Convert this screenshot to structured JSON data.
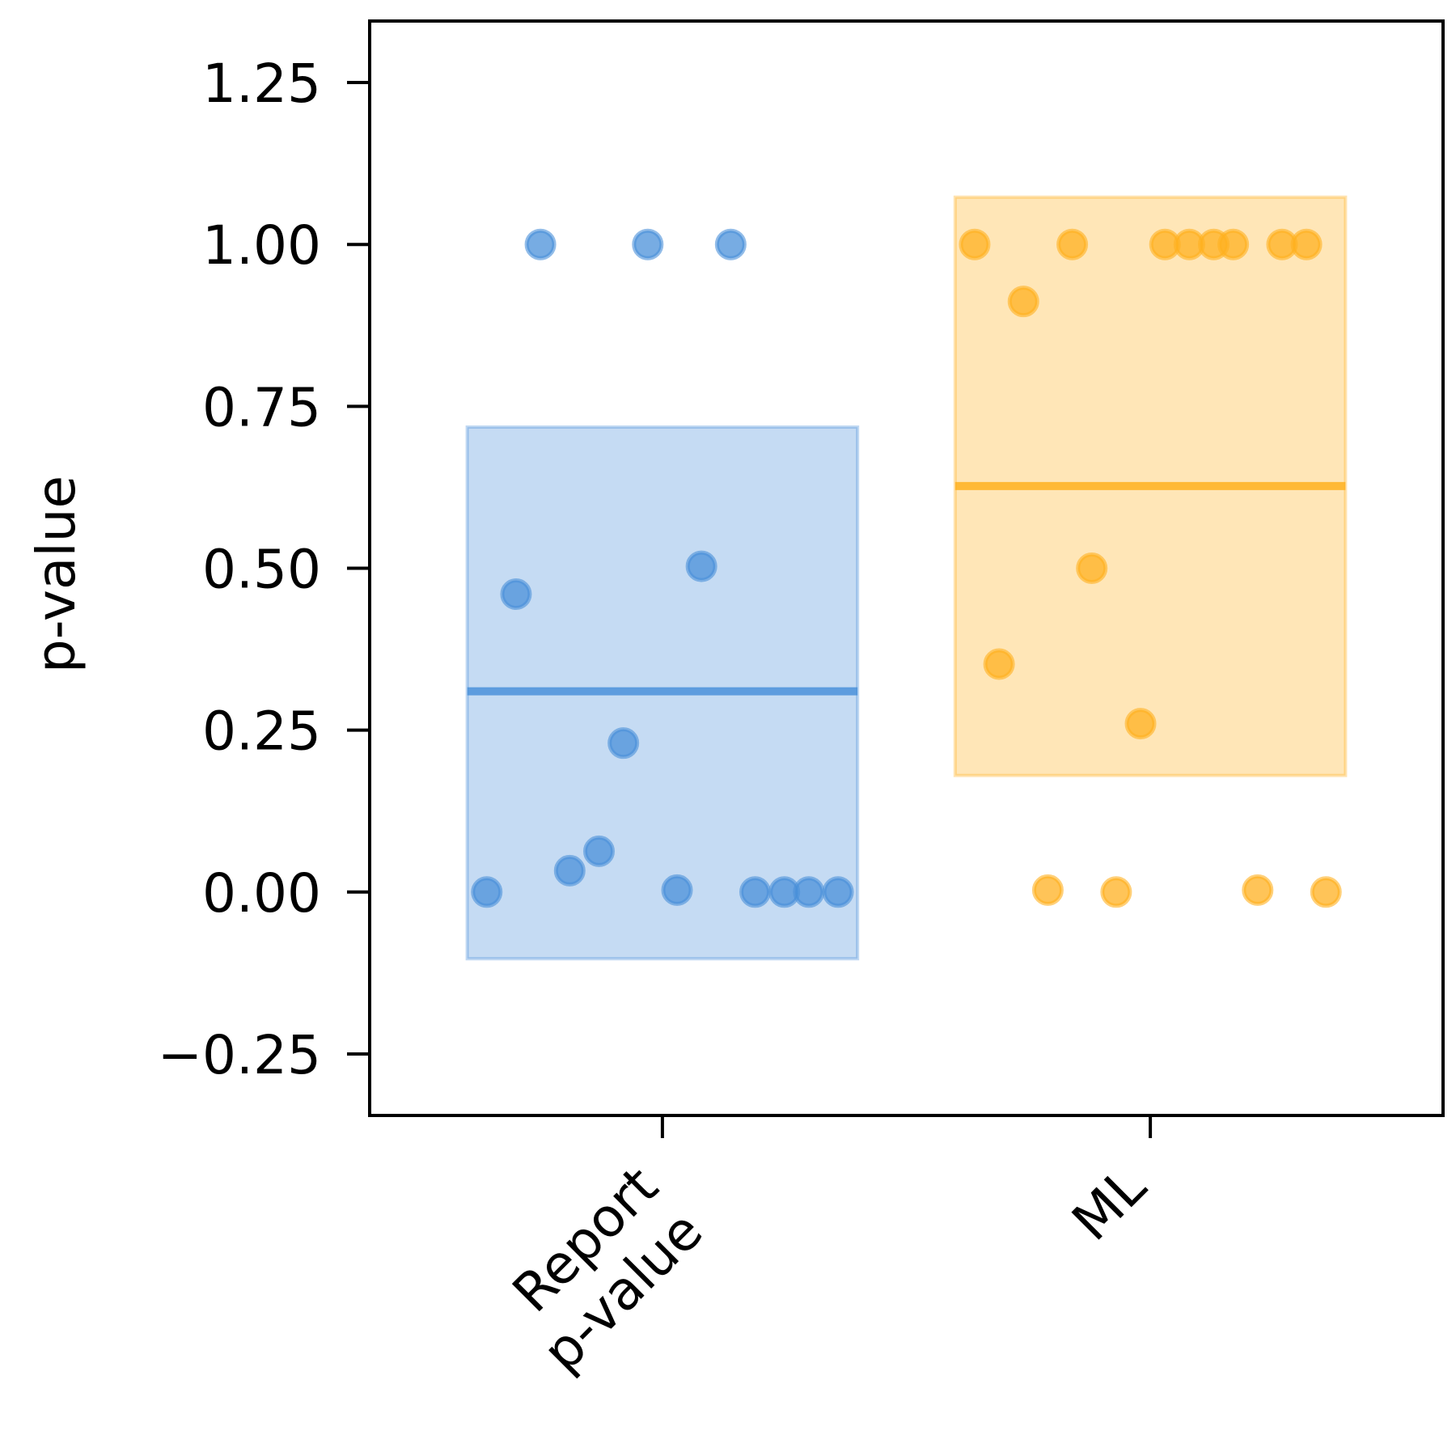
{
  "chart_data": {
    "type": "scatter",
    "ylabel": "p-value",
    "ylim": [
      -0.345,
      1.345
    ],
    "yticks": [
      -0.25,
      0.0,
      0.25,
      0.5,
      0.75,
      1.0,
      1.25
    ],
    "ytick_labels": [
      "−0.25",
      "0.00",
      "0.25",
      "0.50",
      "0.75",
      "1.00",
      "1.25"
    ],
    "grid": false,
    "legend": "none",
    "categories": [
      {
        "label_lines": [
          "Report",
          "p-value"
        ]
      },
      {
        "label_lines": [
          "ML"
        ]
      }
    ],
    "series": [
      {
        "category": 0,
        "color": "#4A90D9",
        "mean": 0.31,
        "band": [
          -0.103,
          0.718
        ],
        "points": [
          {
            "x": -0.36,
            "y": 0.0
          },
          {
            "x": -0.3,
            "y": 0.46
          },
          {
            "x": -0.25,
            "y": 1.0
          },
          {
            "x": -0.19,
            "y": 0.033
          },
          {
            "x": -0.13,
            "y": 0.063
          },
          {
            "x": -0.08,
            "y": 0.23
          },
          {
            "x": -0.03,
            "y": 1.0
          },
          {
            "x": 0.03,
            "y": 0.003
          },
          {
            "x": 0.08,
            "y": 0.503
          },
          {
            "x": 0.14,
            "y": 1.0
          },
          {
            "x": 0.19,
            "y": 0.0
          },
          {
            "x": 0.25,
            "y": 0.0
          },
          {
            "x": 0.3,
            "y": 0.0
          },
          {
            "x": 0.36,
            "y": 0.0
          }
        ]
      },
      {
        "category": 1,
        "color": "#FFB020",
        "mean": 0.627,
        "band": [
          0.18,
          1.073
        ],
        "points": [
          {
            "x": -0.36,
            "y": 1.0
          },
          {
            "x": -0.31,
            "y": 0.352
          },
          {
            "x": -0.26,
            "y": 0.912
          },
          {
            "x": -0.21,
            "y": 0.003
          },
          {
            "x": -0.16,
            "y": 1.0
          },
          {
            "x": -0.12,
            "y": 0.5
          },
          {
            "x": -0.07,
            "y": 0.0
          },
          {
            "x": -0.02,
            "y": 0.26
          },
          {
            "x": 0.03,
            "y": 1.0
          },
          {
            "x": 0.08,
            "y": 1.0
          },
          {
            "x": 0.13,
            "y": 1.0
          },
          {
            "x": 0.17,
            "y": 1.0
          },
          {
            "x": 0.22,
            "y": 0.003
          },
          {
            "x": 0.27,
            "y": 1.0
          },
          {
            "x": 0.32,
            "y": 1.0
          },
          {
            "x": 0.36,
            "y": 0.0
          }
        ]
      }
    ]
  }
}
